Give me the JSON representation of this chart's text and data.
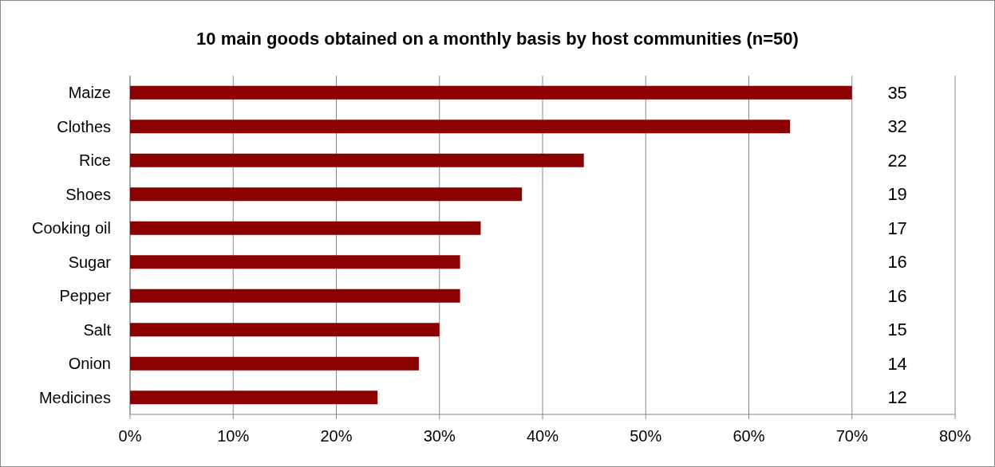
{
  "chart_data": {
    "type": "bar",
    "orientation": "horizontal",
    "title": "10 main goods obtained on a monthly basis by host communities (n=50)",
    "categories": [
      "Maize",
      "Clothes",
      "Rice",
      "Shoes",
      "Cooking oil",
      "Sugar",
      "Pepper",
      "Salt",
      "Onion",
      "Medicines"
    ],
    "values": [
      70,
      64,
      44,
      38,
      34,
      32,
      32,
      30,
      28,
      24
    ],
    "annotations": [
      "35",
      "32",
      "22",
      "19",
      "17",
      "16",
      "16",
      "15",
      "14",
      "12"
    ],
    "color": "#8b0000",
    "xlim": [
      0,
      80
    ],
    "xticks": [
      {
        "value": 0,
        "label": "0%"
      },
      {
        "value": 10,
        "label": "10%"
      },
      {
        "value": 20,
        "label": "20%"
      },
      {
        "value": 30,
        "label": "30%"
      },
      {
        "value": 40,
        "label": "40%"
      },
      {
        "value": 50,
        "label": "50%"
      },
      {
        "value": 60,
        "label": "60%"
      },
      {
        "value": 70,
        "label": "70%"
      },
      {
        "value": 80,
        "label": "80%"
      }
    ],
    "grid": "x"
  }
}
